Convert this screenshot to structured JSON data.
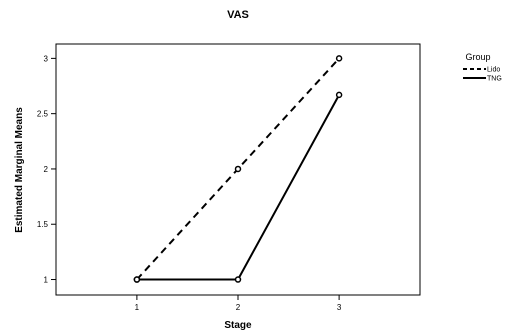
{
  "chart_data": {
    "type": "line",
    "title": "VAS",
    "xlabel": "Stage",
    "ylabel": "Estimated Marginal Means",
    "x": [
      1,
      2,
      3
    ],
    "x_tick_labels": [
      "1",
      "2",
      "3"
    ],
    "y_ticks": [
      1,
      1.5,
      2,
      2.5,
      3
    ],
    "y_tick_labels": [
      "1",
      "1.5",
      "2",
      "2.5",
      "3"
    ],
    "xlim": [
      0.2,
      3.8
    ],
    "ylim": [
      0.86,
      3.13
    ],
    "grid": false,
    "legend": {
      "title": "Group",
      "position": "top-right"
    },
    "series": [
      {
        "name": "Lido",
        "values": [
          1,
          2,
          3
        ],
        "style": "dashed",
        "color": "#000000"
      },
      {
        "name": "TNG",
        "values": [
          1,
          1,
          2.67
        ],
        "style": "solid",
        "color": "#000000"
      }
    ]
  }
}
